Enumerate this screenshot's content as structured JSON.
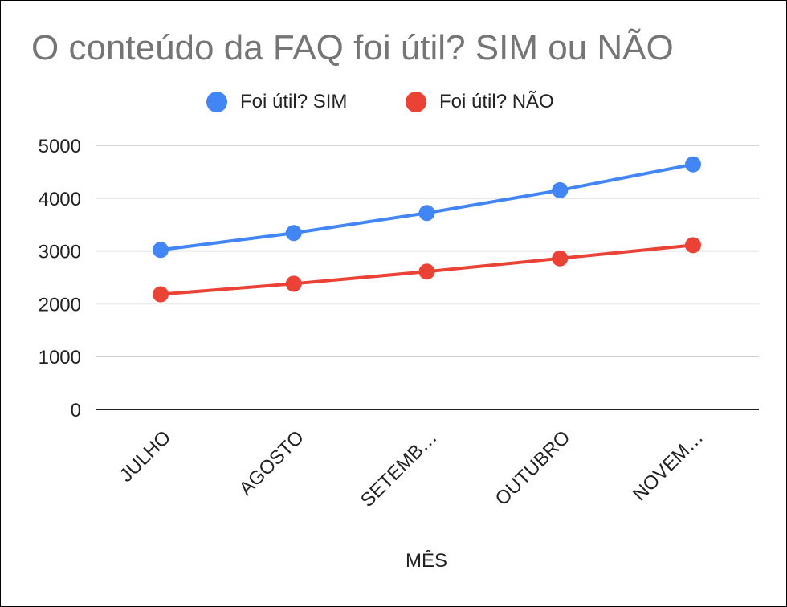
{
  "chart_data": {
    "type": "line",
    "title": "O conteúdo da FAQ foi útil? SIM ou NÃO",
    "xlabel": "MÊS",
    "ylabel": "",
    "categories": [
      "JULHO",
      "AGOSTO",
      "SETEMB…",
      "OUTUBRO",
      "NOVEM…"
    ],
    "ylim": [
      0,
      5000
    ],
    "yticks": [
      0,
      1000,
      2000,
      3000,
      4000,
      5000
    ],
    "grid": true,
    "legend_position": "top",
    "series": [
      {
        "name": "Foi útil? SIM",
        "color": "#4285F4",
        "values": [
          3020,
          3340,
          3720,
          4150,
          4640
        ]
      },
      {
        "name": "Foi útil? NÃO",
        "color": "#EA4335",
        "values": [
          2180,
          2380,
          2610,
          2860,
          3110
        ]
      }
    ]
  }
}
